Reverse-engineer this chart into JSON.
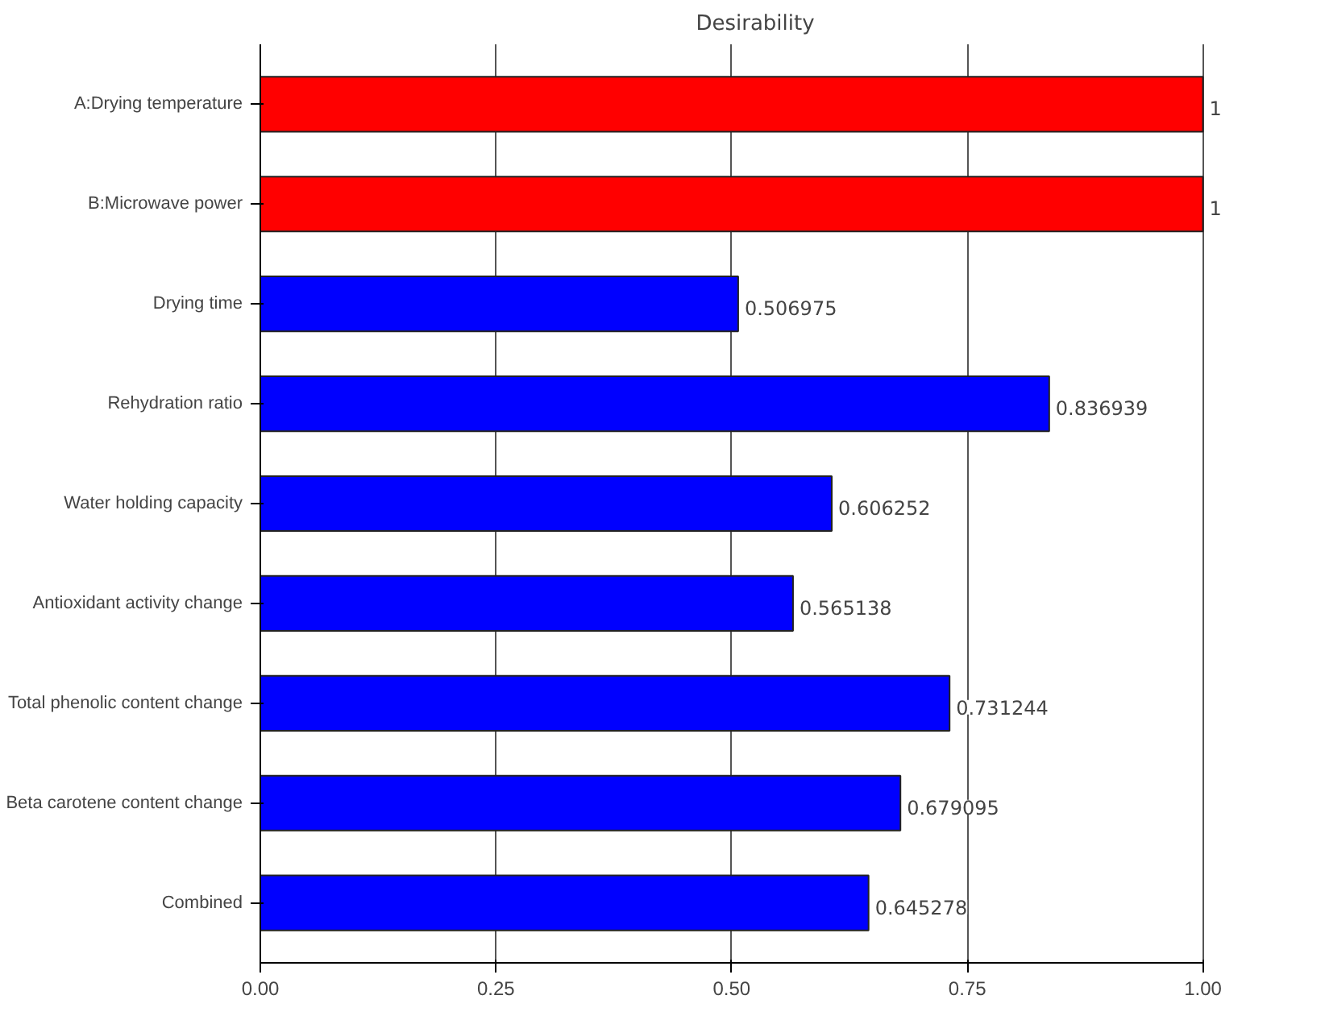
{
  "chart_data": {
    "type": "bar",
    "orientation": "horizontal",
    "title": "Desirability",
    "categories": [
      "A:Drying temperature",
      "B:Microwave power",
      "Drying time",
      "Rehydration ratio",
      "Water holding capacity",
      "Antioxidant activity change",
      "Total phenolic content change",
      "Beta carotene content change",
      "Combined"
    ],
    "values": [
      1,
      1,
      0.506975,
      0.836939,
      0.606252,
      0.565138,
      0.731244,
      0.679095,
      0.645278
    ],
    "colors": [
      "#ff0000",
      "#ff0000",
      "#0000ff",
      "#0000ff",
      "#0000ff",
      "#0000ff",
      "#0000ff",
      "#0000ff",
      "#0000ff"
    ],
    "xlim": [
      0,
      1
    ],
    "xticks": [
      {
        "value": 0,
        "label": "0.00"
      },
      {
        "value": 0.25,
        "label": "0.25"
      },
      {
        "value": 0.5,
        "label": "0.50"
      },
      {
        "value": 0.75,
        "label": "0.75"
      },
      {
        "value": 1,
        "label": "1.00"
      }
    ],
    "grid": "x",
    "data_labels": true
  }
}
